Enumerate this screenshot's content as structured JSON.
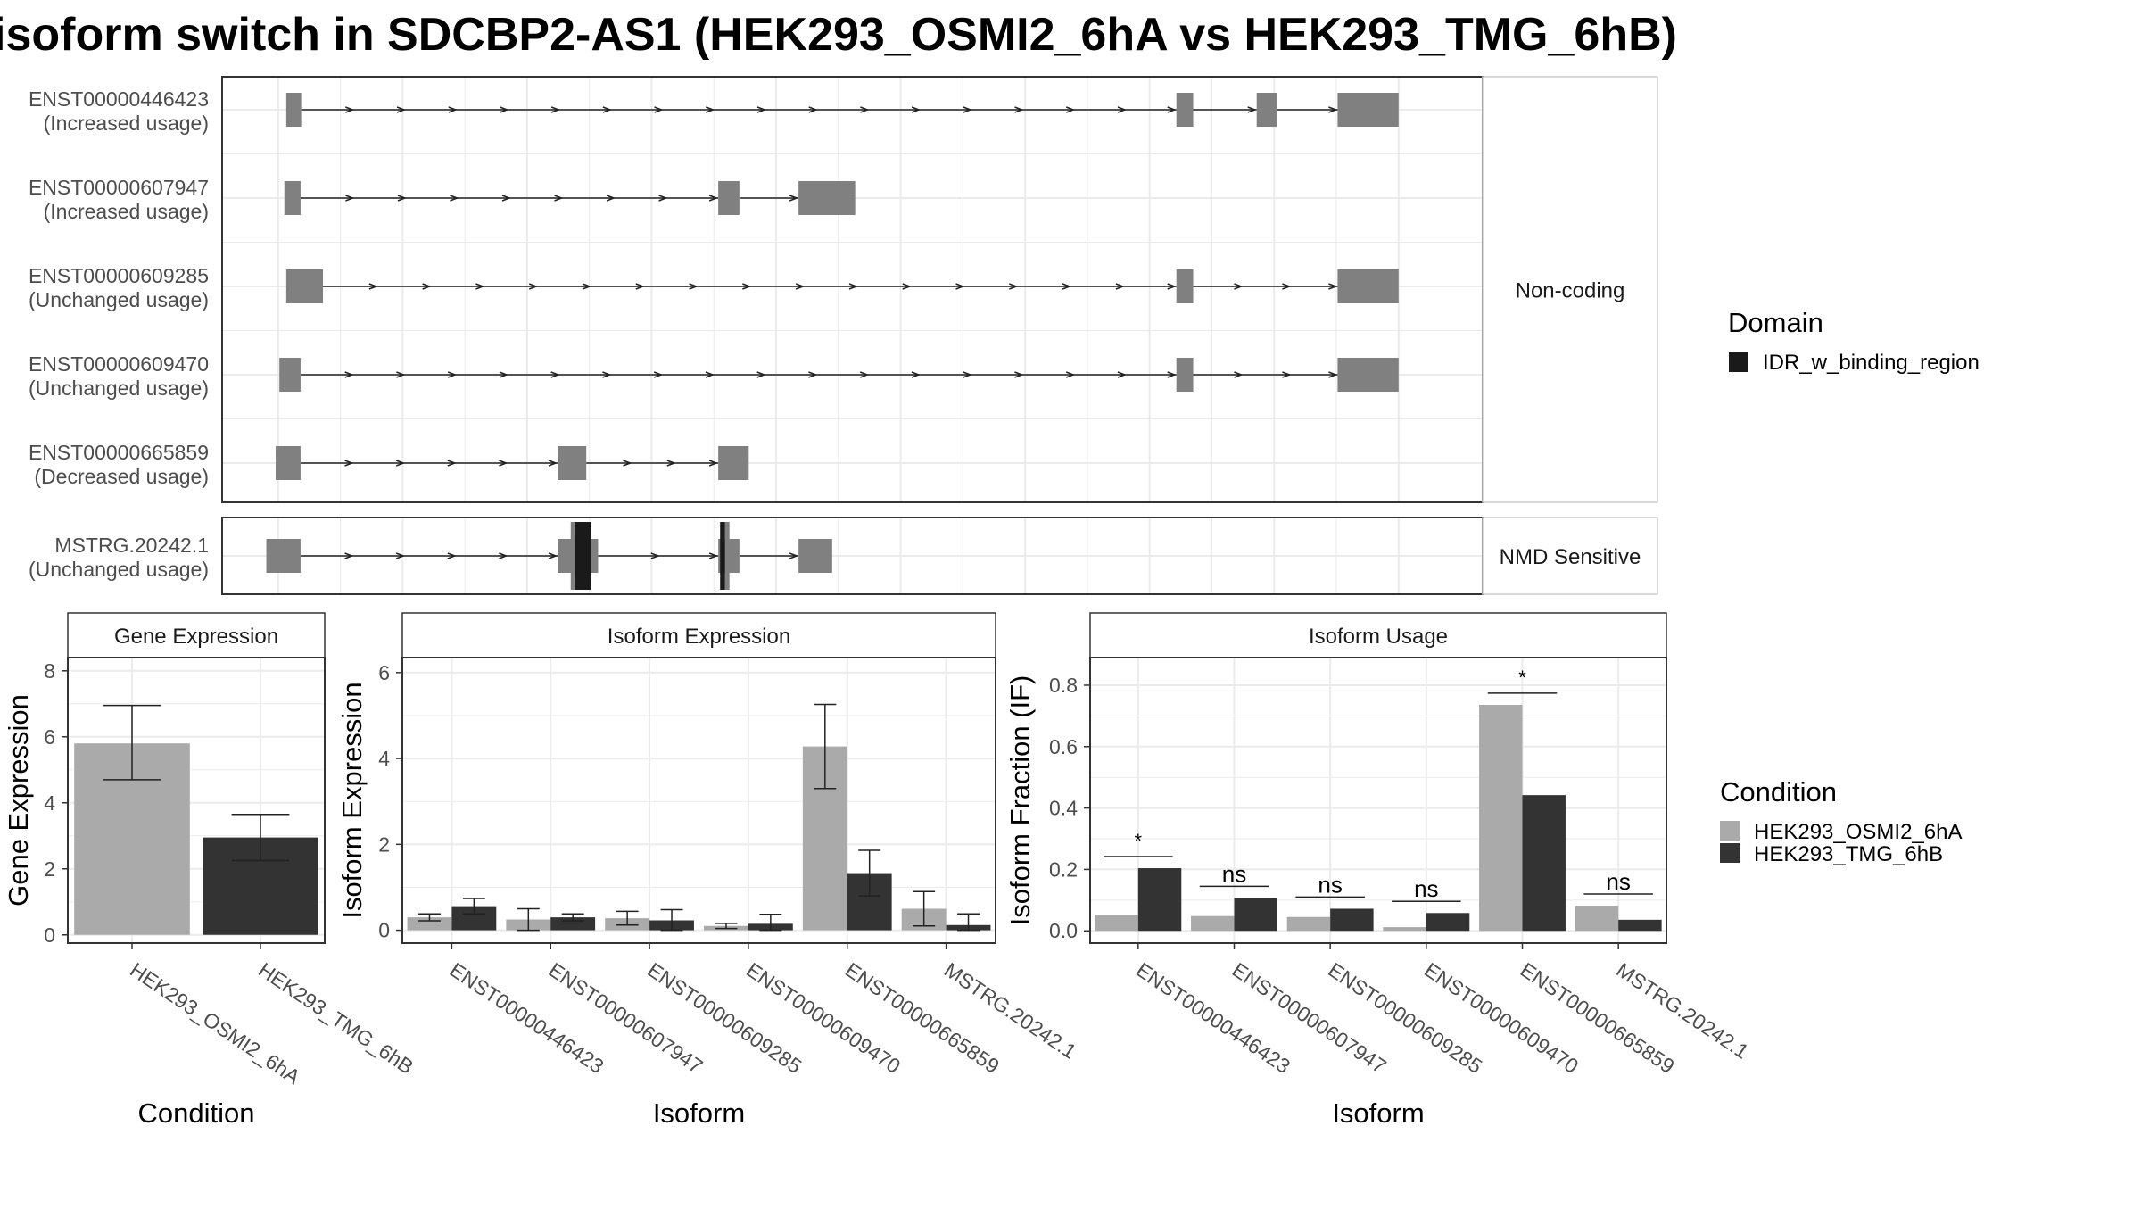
{
  "page": {
    "title": "isoform switch in SDCBP2-AS1 (HEK293_OSMI2_6hA vs HEK293_TMG_6hB)"
  },
  "colors": {
    "exon": "#808080",
    "domain": "#1a1a1a",
    "cond_a": "#aaaaaa",
    "cond_b": "#333333",
    "grid": "#ebebeb",
    "strip_bg": "#ffffff",
    "panel_border": "#333333",
    "text": "#4d4d4d"
  },
  "chart_data": [
    {
      "id": "transcript_structure",
      "type": "gene_structure",
      "groups": [
        {
          "label": "Non-coding",
          "isoforms": [
            {
              "id": "ENST00000446423",
              "usage": "(Increased usage)",
              "exons": [
                [
                  0.13,
                  0.37
                ],
                [
                  14.43,
                  14.7
                ],
                [
                  15.72,
                  16.04
                ],
                [
                  17.02,
                  18.0
                ]
              ],
              "domains": []
            },
            {
              "id": "ENST00000607947",
              "usage": "(Increased usage)",
              "exons": [
                [
                  0.1,
                  0.36
                ],
                [
                  7.07,
                  7.41
                ],
                [
                  8.36,
                  9.27
                ]
              ],
              "domains": []
            },
            {
              "id": "ENST00000609285",
              "usage": "(Unchanged usage)",
              "exons": [
                [
                  0.13,
                  0.72
                ],
                [
                  14.43,
                  14.7
                ],
                [
                  17.02,
                  18.0
                ]
              ],
              "domains": []
            },
            {
              "id": "ENST00000609470",
              "usage": "(Unchanged usage)",
              "exons": [
                [
                  0.02,
                  0.36
                ],
                [
                  14.43,
                  14.7
                ],
                [
                  17.02,
                  18.0
                ]
              ],
              "domains": []
            },
            {
              "id": "ENST00000665859",
              "usage": "(Decreased usage)",
              "exons": [
                [
                  -0.04,
                  0.36
                ],
                [
                  4.49,
                  4.95
                ],
                [
                  7.07,
                  7.56
                ]
              ],
              "domains": []
            }
          ]
        },
        {
          "label": "NMD Sensitive",
          "isoforms": [
            {
              "id": "MSTRG.20242.1",
              "usage": "(Unchanged usage)",
              "exons": [
                [
                  -0.19,
                  0.36
                ],
                [
                  4.49,
                  5.14
                ],
                [
                  7.07,
                  7.41
                ],
                [
                  8.36,
                  8.9
                ]
              ],
              "domains": [
                [
                  4.76,
                  5.02
                ],
                [
                  7.1,
                  7.18
                ]
              ]
            }
          ]
        }
      ],
      "x_range": [
        -0.9,
        19.35
      ]
    },
    {
      "id": "gene_expression",
      "type": "bar",
      "title": "Gene Expression",
      "xlabel": "Condition",
      "ylabel": "Gene Expression",
      "categories": [
        "HEK293_OSMI2_6hA",
        "HEK293_TMG_6hB"
      ],
      "values": [
        5.8,
        2.95
      ],
      "errors": [
        [
          4.7,
          6.95
        ],
        [
          2.25,
          3.65
        ]
      ],
      "ylim": [
        -0.25,
        8.4
      ],
      "yticks": [
        "0",
        "2",
        "4",
        "6",
        "8"
      ],
      "ytick_values": [
        0,
        2,
        4,
        6,
        8
      ]
    },
    {
      "id": "isoform_expression",
      "type": "bar",
      "title": "Isoform Expression",
      "xlabel": "Isoform",
      "ylabel": "Isoform Expression",
      "categories": [
        "ENST00000446423",
        "ENST00000607947",
        "ENST00000609285",
        "ENST00000609470",
        "ENST00000665859",
        "MSTRG.20242.1"
      ],
      "series": [
        {
          "name": "HEK293_OSMI2_6hA",
          "values": [
            0.3,
            0.25,
            0.28,
            0.1,
            4.28,
            0.5
          ],
          "errors": [
            [
              0.22,
              0.38
            ],
            [
              0.0,
              0.5
            ],
            [
              0.12,
              0.44
            ],
            [
              0.04,
              0.16
            ],
            [
              3.3,
              5.26
            ],
            [
              0.1,
              0.9
            ]
          ]
        },
        {
          "name": "HEK293_TMG_6hB",
          "values": [
            0.56,
            0.3,
            0.23,
            0.15,
            1.33,
            0.12
          ],
          "errors": [
            [
              0.38,
              0.74
            ],
            [
              0.22,
              0.38
            ],
            [
              0.0,
              0.48
            ],
            [
              0.0,
              0.37
            ],
            [
              0.8,
              1.86
            ],
            [
              0.0,
              0.38
            ]
          ]
        }
      ],
      "ylim": [
        -0.3,
        6.35
      ],
      "yticks": [
        "0",
        "2",
        "4",
        "6"
      ],
      "ytick_values": [
        0,
        2,
        4,
        6
      ]
    },
    {
      "id": "isoform_usage",
      "type": "bar",
      "title": "Isoform Usage",
      "xlabel": "Isoform",
      "ylabel": "Isoform Fraction (IF)",
      "categories": [
        "ENST00000446423",
        "ENST00000607947",
        "ENST00000609285",
        "ENST00000609470",
        "ENST00000665859",
        "MSTRG.20242.1"
      ],
      "series": [
        {
          "name": "HEK293_OSMI2_6hA",
          "values": [
            0.053,
            0.048,
            0.045,
            0.012,
            0.736,
            0.082
          ]
        },
        {
          "name": "HEK293_TMG_6hB",
          "values": [
            0.204,
            0.107,
            0.072,
            0.058,
            0.442,
            0.036
          ]
        }
      ],
      "significance": [
        "*",
        "ns",
        "ns",
        "ns",
        "*",
        "ns"
      ],
      "sig_y": [
        0.242,
        0.145,
        0.11,
        0.096,
        0.774,
        0.12
      ],
      "ylim": [
        -0.04,
        0.89
      ],
      "yticks": [
        "0.0",
        "0.2",
        "0.4",
        "0.6",
        "0.8"
      ],
      "ytick_values": [
        0,
        0.2,
        0.4,
        0.6,
        0.8
      ]
    }
  ],
  "legend_domain": {
    "title": "Domain",
    "items": [
      {
        "label": "IDR_w_binding_region",
        "color": "#1a1a1a"
      }
    ]
  },
  "legend_condition": {
    "title": "Condition",
    "items": [
      {
        "label": "HEK293_OSMI2_6hA",
        "color": "#aaaaaa"
      },
      {
        "label": "HEK293_TMG_6hB",
        "color": "#333333"
      }
    ]
  }
}
